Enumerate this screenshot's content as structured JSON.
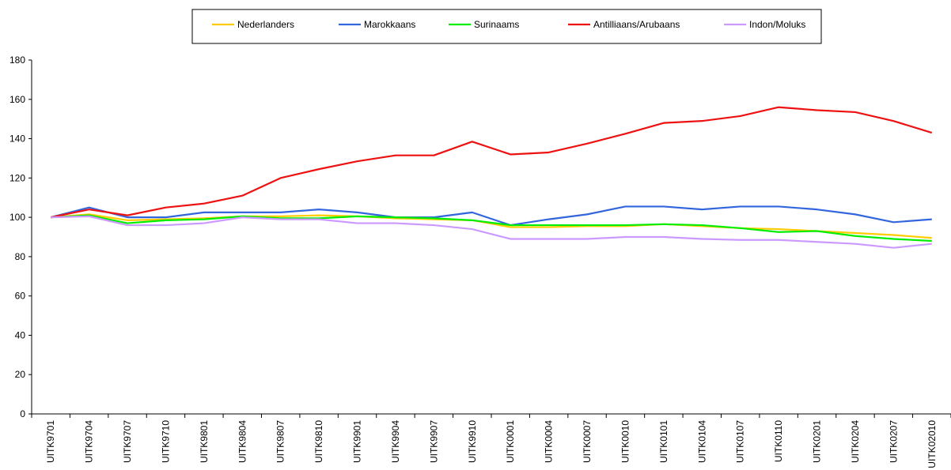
{
  "chart_data": {
    "type": "line",
    "categories": [
      "UITK9701",
      "UITK9704",
      "UITK9707",
      "UITK9710",
      "UITK9801",
      "UITK9804",
      "UITK9807",
      "UITK9810",
      "UITK9901",
      "UITK9904",
      "UITK9907",
      "UITK9910",
      "UITK0001",
      "UITK0004",
      "UITK0007",
      "UITK0010",
      "UITK0101",
      "UITK0104",
      "UITK0107",
      "UITK0110",
      "UITK0201",
      "UITK0204",
      "UITK0207",
      "UITK02010"
    ],
    "series": [
      {
        "name": "Nederlanders",
        "color": "#ffcc00",
        "values": [
          100,
          101.5,
          98.5,
          99,
          99.5,
          100.5,
          100.5,
          101,
          100.5,
          99.5,
          99,
          98.5,
          95,
          95,
          95.5,
          95.5,
          96.5,
          95.5,
          94.5,
          94,
          93,
          92,
          91,
          89.5
        ]
      },
      {
        "name": "Marokkaans",
        "color": "#3366dd",
        "values": [
          100,
          105,
          100,
          100,
          102.5,
          102.5,
          102.5,
          104,
          102.5,
          100,
          100,
          102.5,
          96,
          99,
          101.5,
          105.5,
          105.5,
          104,
          105.5,
          105.5,
          104,
          101.5,
          97.5,
          99
        ]
      },
      {
        "name": "Surinaams",
        "color": "#00ee00",
        "values": [
          100,
          101,
          97,
          98.5,
          99,
          100.5,
          99.5,
          99.5,
          100.5,
          100,
          99.5,
          98.5,
          96,
          96,
          96,
          96,
          96.5,
          96,
          94.5,
          92.5,
          93,
          90.5,
          89,
          88
        ]
      },
      {
        "name": "Antilliaans/Arubaans",
        "color": "#ee1111",
        "values": [
          100,
          104,
          101,
          105,
          107,
          111,
          120,
          124.5,
          128.5,
          131.5,
          131.5,
          138.5,
          132,
          133,
          137.5,
          142.5,
          148,
          149,
          151.5,
          156,
          154.5,
          153.5,
          149,
          143
        ]
      },
      {
        "name": "Indon/Moluks",
        "color": "#cc99ff",
        "values": [
          100,
          100.5,
          96,
          96,
          97,
          100,
          99,
          99,
          97,
          97,
          96,
          94,
          89,
          89,
          89,
          90,
          90,
          89,
          88.5,
          88.5,
          87.5,
          86.5,
          84.5,
          86.5
        ]
      }
    ],
    "ylim": [
      0,
      180
    ],
    "yticks": [
      0,
      20,
      40,
      60,
      80,
      100,
      120,
      140,
      160,
      180
    ],
    "grid": false,
    "legend": "top"
  }
}
